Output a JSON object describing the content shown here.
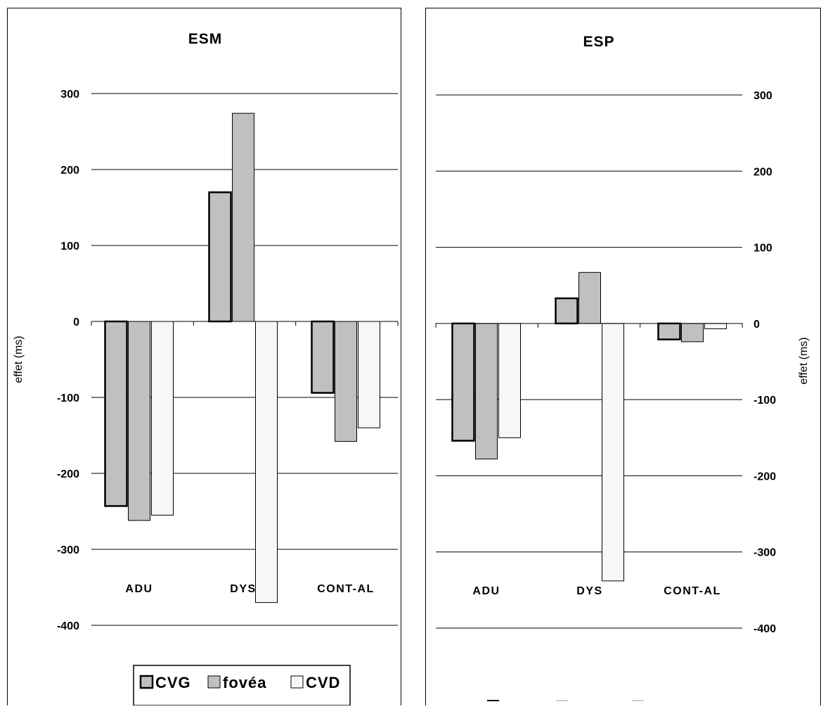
{
  "colors": {
    "CVG": "#c0c0c0",
    "fovea": "#c0c0c0",
    "CVD": "#f7f7f7",
    "grid": "#000000",
    "frame": "#000000"
  },
  "chart_data": [
    {
      "type": "bar",
      "title": "ESM",
      "ylabel": "effet (ms)",
      "ylim": [
        -400,
        300
      ],
      "yticks": [
        "300",
        "200",
        "100",
        "0",
        "-100",
        "-200",
        "-300",
        "-400"
      ],
      "ytick_values": [
        300,
        200,
        100,
        0,
        -100,
        -200,
        -300,
        -400
      ],
      "categories": [
        "ADU",
        "DYS",
        "CONT-AL"
      ],
      "legend": {
        "position": "bottom",
        "visible": true,
        "labels": [
          "CVG",
          "fovéa",
          "CVD"
        ]
      },
      "series": [
        {
          "name": "CVG",
          "values": [
            -243,
            170,
            -94
          ]
        },
        {
          "name": "fovéa",
          "values": [
            -262,
            274,
            -158
          ]
        },
        {
          "name": "CVD",
          "values": [
            -255,
            -370,
            -140
          ]
        }
      ]
    },
    {
      "type": "bar",
      "title": "ESP",
      "ylabel": "effet (ms)",
      "ylim": [
        -400,
        300
      ],
      "yticks": [
        "300",
        "200",
        "100",
        "0",
        "-100",
        "-200",
        "-300",
        "-400"
      ],
      "ytick_values": [
        300,
        200,
        100,
        0,
        -100,
        -200,
        -300,
        -400
      ],
      "categories": [
        "ADU",
        "DYS",
        "CONT-AL"
      ],
      "legend": {
        "position": "bottom",
        "visible": false,
        "labels": []
      },
      "series": [
        {
          "name": "CVG",
          "values": [
            -154,
            33,
            -21
          ]
        },
        {
          "name": "fovéa",
          "values": [
            -178,
            67,
            -24
          ]
        },
        {
          "name": "CVD",
          "values": [
            -150,
            -338,
            -7
          ]
        }
      ]
    }
  ]
}
